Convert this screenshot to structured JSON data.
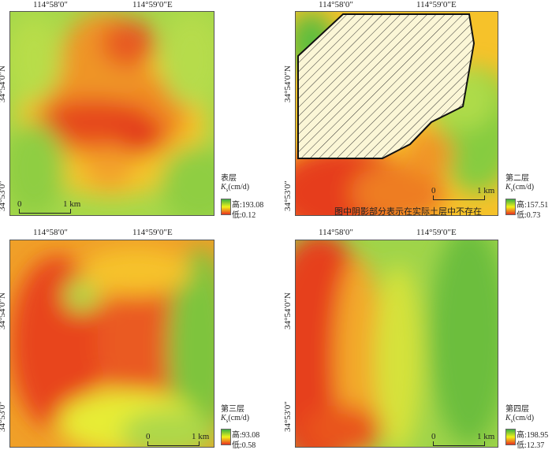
{
  "coords": {
    "lon1": "114°58′0″",
    "lon2": "114°59′0″E",
    "lat1": "34°54′0″N",
    "lat2": "34°53′0″"
  },
  "scale": {
    "zero": "0",
    "unit": "1 km"
  },
  "legend_unit": "(cm/d)",
  "legend_k": "K",
  "legend_sub": "s",
  "panels": [
    {
      "layer": "表层",
      "high": "高:193.08",
      "low": "低:0.12"
    },
    {
      "layer": "第二层",
      "high": "高:157.51",
      "low": "低:0.73",
      "note": "图中阴影部分表示在实际土层中不存在"
    },
    {
      "layer": "第三层",
      "high": "高:93.08",
      "low": "低:0.58"
    },
    {
      "layer": "第四层",
      "high": "高:198.95",
      "low": "低:12.37"
    }
  ],
  "colors": {
    "high": "#3cb043",
    "mid": "#f2f21a",
    "low": "#e8301e"
  }
}
